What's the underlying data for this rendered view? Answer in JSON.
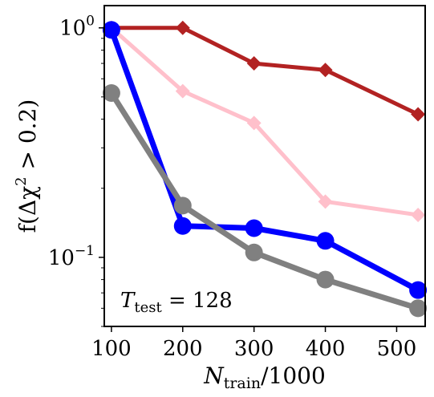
{
  "chart_data": {
    "type": "line",
    "xlabel": {
      "main": "N",
      "sub": "train",
      "rest": "/1000"
    },
    "ylabel": {
      "prefix": "f(Δχ",
      "sup": "2",
      "suffix": " > 0.2)"
    },
    "annotation": {
      "main": "T",
      "sub": "test",
      "rest": " = 128"
    },
    "xlim": [
      90,
      540
    ],
    "ylim": [
      0.05,
      1.25
    ],
    "yscale": "log",
    "xticks": [
      100,
      200,
      300,
      400,
      500
    ],
    "yticks": [
      {
        "value": 1.0,
        "base": "10",
        "exp": "0"
      },
      {
        "value": 0.1,
        "base": "10",
        "exp": "−1"
      }
    ],
    "grid": false,
    "legend": "none",
    "series": [
      {
        "color": "#b22222",
        "marker": "diamond",
        "x": [
          100,
          200,
          300,
          400,
          530
        ],
        "y": [
          1.0,
          1.0,
          0.7,
          0.655,
          0.42
        ]
      },
      {
        "color": "#ffc0cb",
        "marker": "diamond",
        "x": [
          100,
          200,
          300,
          400,
          530
        ],
        "y": [
          1.0,
          0.53,
          0.385,
          0.175,
          0.153
        ]
      },
      {
        "color": "#0000ff",
        "marker": "circle",
        "x": [
          100,
          200,
          300,
          400,
          530
        ],
        "y": [
          0.98,
          0.137,
          0.134,
          0.118,
          0.072
        ]
      },
      {
        "color": "#808080",
        "marker": "circle",
        "x": [
          100,
          200,
          300,
          400,
          530
        ],
        "y": [
          0.52,
          0.168,
          0.105,
          0.08,
          0.06
        ]
      }
    ]
  }
}
